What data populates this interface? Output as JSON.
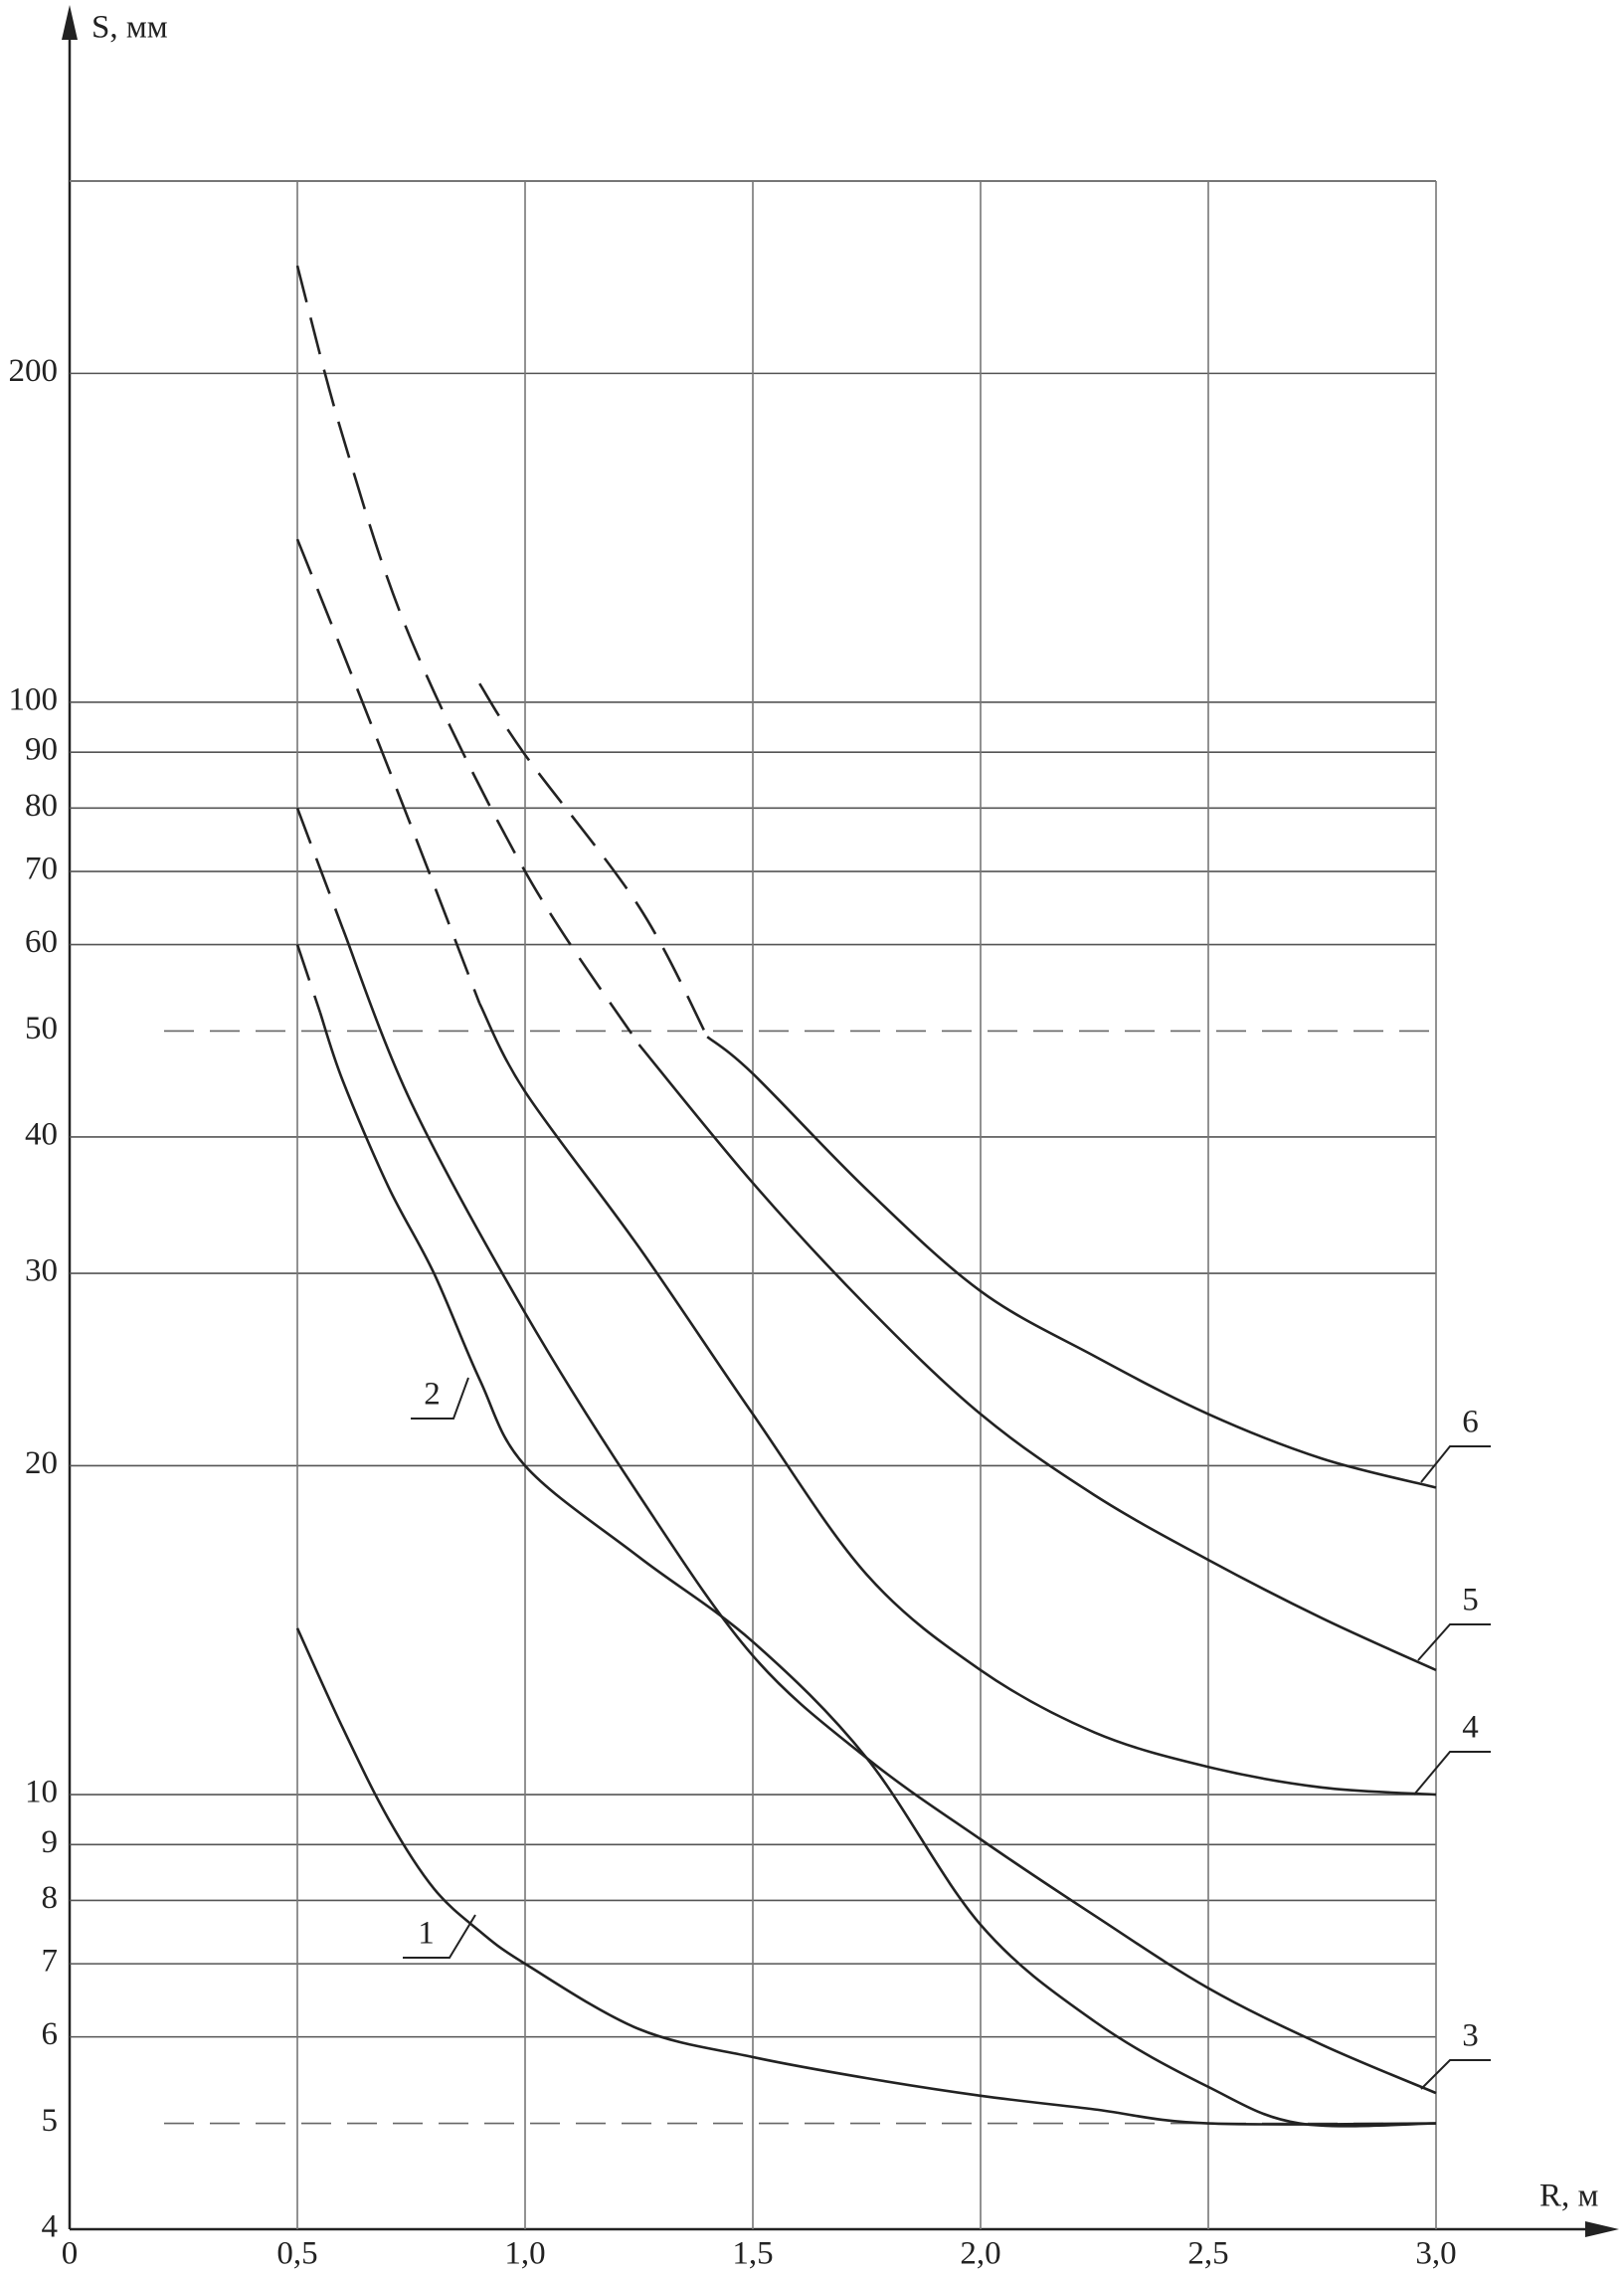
{
  "chart_data": {
    "type": "line",
    "x_label": "R, м",
    "y_label": "S, мм",
    "xlim": [
      0,
      3
    ],
    "ylim": [
      4,
      300
    ],
    "log_y": true,
    "grid": true,
    "xticks": [
      0,
      {
        "value": 0.5,
        "label": "0,5"
      },
      {
        "value": 1,
        "label": "1,0"
      },
      {
        "value": 1.5,
        "label": "1,5"
      },
      {
        "value": 2,
        "label": "2,0"
      },
      {
        "value": 2.5,
        "label": "2,5"
      },
      {
        "value": 3,
        "label": "3,0"
      }
    ],
    "yticks": [
      4,
      5,
      6,
      7,
      8,
      9,
      10,
      20,
      30,
      40,
      50,
      60,
      70,
      80,
      90,
      100,
      200
    ],
    "dashed_grid_at": [
      5,
      50
    ],
    "series": [
      {
        "name": "1",
        "color": "#222222",
        "dashed_to": 0.5,
        "x": [
          0.5,
          0.6,
          0.7,
          0.8,
          0.9,
          1.0,
          1.25,
          1.5,
          1.75,
          2.0,
          2.25,
          2.5,
          3.0
        ],
        "values": [
          14.2,
          11.5,
          9.5,
          8.2,
          7.5,
          7.0,
          6.1,
          5.75,
          5.5,
          5.3,
          5.15,
          5.0,
          5.0
        ]
      },
      {
        "name": "2",
        "color": "#222222",
        "dashed_to": 0.55,
        "x": [
          0.5,
          0.55,
          0.6,
          0.7,
          0.8,
          0.9,
          1.0,
          1.25,
          1.5,
          1.75,
          2.0,
          2.25,
          2.5,
          2.7,
          3.0
        ],
        "values": [
          60,
          52,
          45,
          36,
          30,
          24,
          20,
          16.5,
          13.8,
          10.8,
          7.6,
          6.2,
          5.4,
          5.0,
          5.0
        ]
      },
      {
        "name": "3",
        "color": "#222222",
        "dashed_to": 0.6,
        "x": [
          0.5,
          0.6,
          0.75,
          1.0,
          1.25,
          1.5,
          1.75,
          2.0,
          2.25,
          2.5,
          2.75,
          3.0
        ],
        "values": [
          80,
          62,
          43,
          27.6,
          18.8,
          13.4,
          10.8,
          9.1,
          7.75,
          6.65,
          5.9,
          5.33
        ]
      },
      {
        "name": "4",
        "color": "#222222",
        "dashed_to": 0.9,
        "x": [
          0.5,
          0.6,
          0.75,
          0.9,
          1.0,
          1.25,
          1.5,
          1.75,
          2.0,
          2.25,
          2.5,
          2.75,
          3.0
        ],
        "values": [
          141,
          111,
          77,
          53,
          44,
          31.7,
          22.3,
          15.9,
          13.0,
          11.4,
          10.6,
          10.15,
          10
        ]
      },
      {
        "name": "5",
        "color": "#222222",
        "dashed_to": 1.25,
        "x": [
          0.5,
          0.6,
          0.75,
          1.0,
          1.25,
          1.5,
          1.75,
          2.0,
          2.25,
          2.5,
          2.75,
          3.0
        ],
        "values": [
          251,
          175,
          114,
          70,
          48.6,
          36.3,
          28,
          22.3,
          18.8,
          16.4,
          14.5,
          13.0
        ]
      },
      {
        "name": "6",
        "color": "#222222",
        "dashed_to": 1.4,
        "x": [
          0.9,
          1.0,
          1.25,
          1.4,
          1.5,
          1.75,
          2.0,
          2.25,
          2.5,
          2.75,
          3.0
        ],
        "values": [
          104,
          89.5,
          65,
          49.4,
          45.7,
          35.8,
          28.9,
          25.2,
          22.3,
          20.3,
          19.1
        ]
      }
    ]
  }
}
